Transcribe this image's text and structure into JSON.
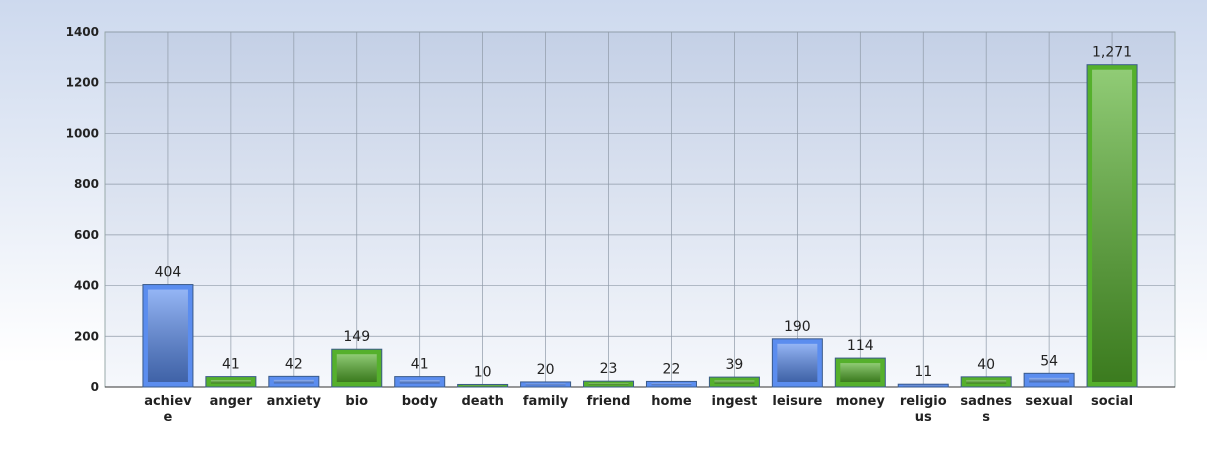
{
  "chart_data": {
    "type": "bar",
    "categories": [
      "achieve",
      "anger",
      "anxiety",
      "bio",
      "body",
      "death",
      "family",
      "friend",
      "home",
      "ingest",
      "leisure",
      "money",
      "religious",
      "sadness",
      "sexual",
      "social"
    ],
    "values": [
      404,
      41,
      42,
      149,
      41,
      10,
      20,
      23,
      22,
      39,
      190,
      114,
      11,
      40,
      54,
      1271
    ],
    "value_labels": [
      "404",
      "41",
      "42",
      "149",
      "41",
      "10",
      "20",
      "23",
      "22",
      "39",
      "190",
      "114",
      "11",
      "40",
      "54",
      "1,271"
    ],
    "colors": [
      "#5b8def",
      "#55b02c",
      "#5b8def",
      "#55b02c",
      "#5b8def",
      "#55b02c",
      "#5b8def",
      "#55b02c",
      "#5b8def",
      "#55b02c",
      "#5b8def",
      "#55b02c",
      "#5b8def",
      "#55b02c",
      "#5b8def",
      "#55b02c"
    ],
    "ylim": [
      0,
      1400
    ],
    "yticks": [
      0,
      200,
      400,
      600,
      800,
      1000,
      1200,
      1400
    ],
    "grid": true
  }
}
